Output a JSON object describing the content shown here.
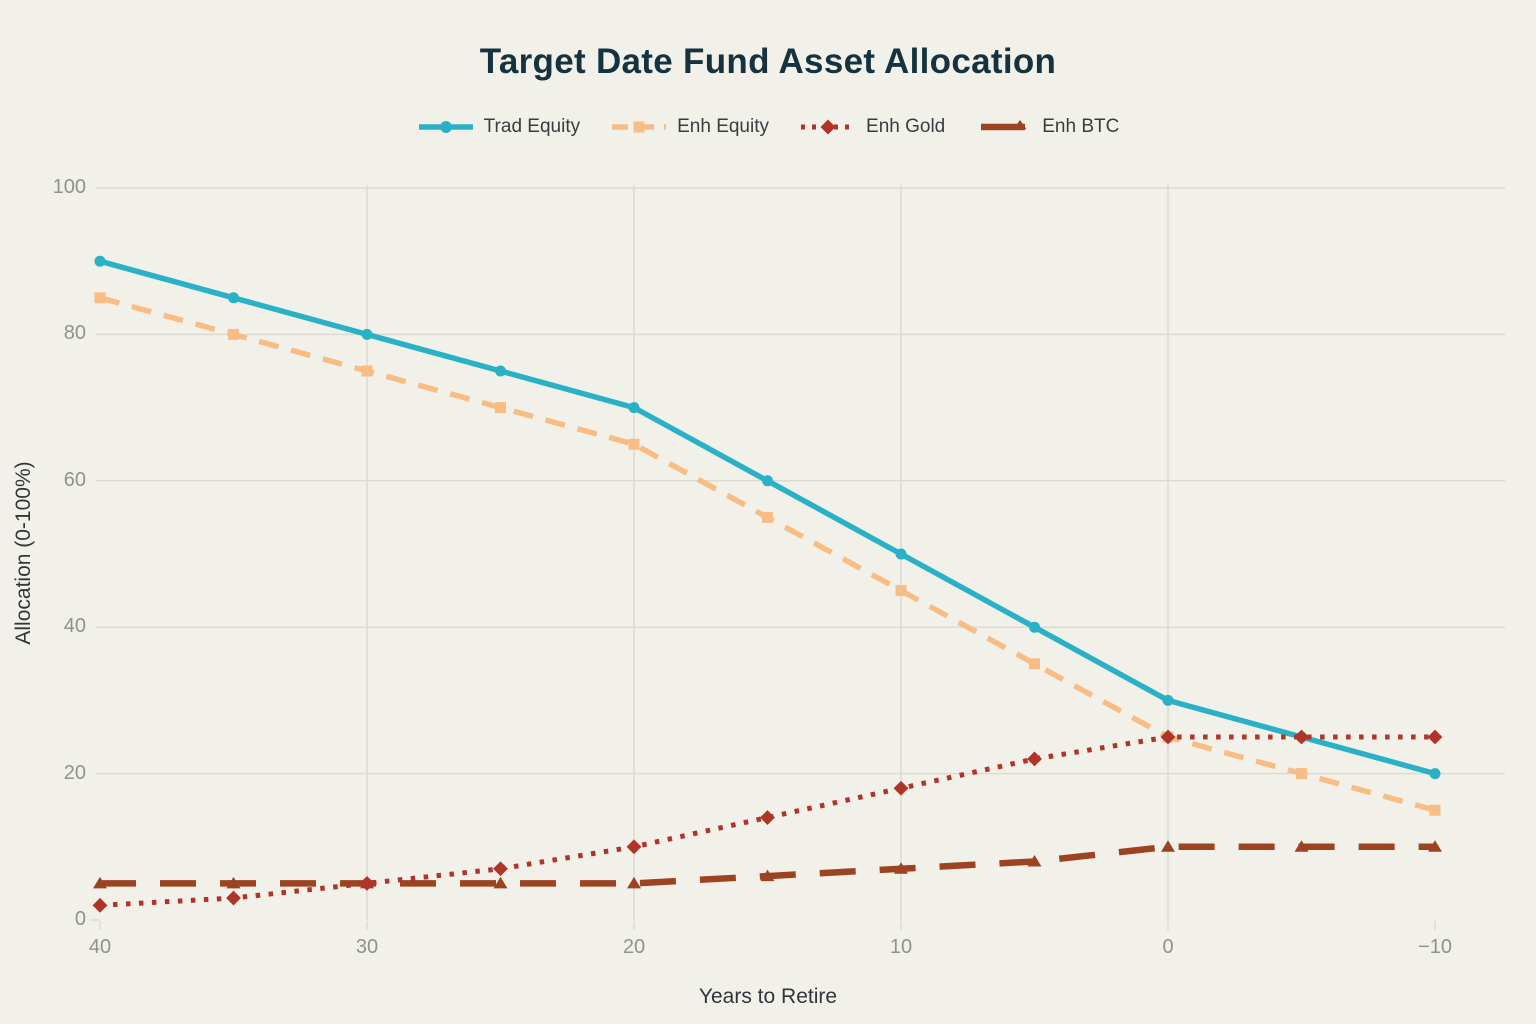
{
  "page": {
    "background": "#f1f1ea"
  },
  "title": "Target Date Fund Asset Allocation",
  "colors": {
    "title_text": "#14333f",
    "legend_text": "#3a3d3f",
    "tick_text": "#92928c",
    "axis_label_text": "#333639",
    "gridline": "#dcdbd2",
    "trad_equity": "#2ab1c5",
    "enh_equity": "#f8bd85",
    "enh_gold": "#b03428",
    "enh_btc": "#9c4322"
  },
  "chart_data": {
    "type": "line",
    "title": "Target Date Fund Asset Allocation",
    "xlabel": "Years to Retire",
    "ylabel": "Allocation (0-100%)",
    "x": [
      40,
      35,
      30,
      25,
      20,
      15,
      10,
      5,
      0,
      -5,
      -10
    ],
    "x_tick_values": [
      40,
      30,
      20,
      10,
      0,
      -10
    ],
    "x_tick_labels": [
      "40",
      "30",
      "20",
      "10",
      "0",
      "−10"
    ],
    "y_tick_values": [
      0,
      20,
      40,
      60,
      80,
      100
    ],
    "y_tick_labels": [
      "0",
      "20",
      "40",
      "60",
      "80",
      "100"
    ],
    "ylim": [
      0,
      100
    ],
    "x_axis_reversed": true,
    "grid": true,
    "legend_position": "top",
    "series": [
      {
        "name": "Trad Equity",
        "color": "#2ab1c5",
        "line_style": "solid",
        "marker": "circle",
        "values": [
          90,
          85,
          80,
          75,
          70,
          60,
          50,
          40,
          30,
          25,
          20
        ]
      },
      {
        "name": "Enh Equity",
        "color": "#f8bd85",
        "line_style": "dashed",
        "marker": "square",
        "values": [
          85,
          80,
          75,
          70,
          65,
          55,
          45,
          35,
          25,
          20,
          15
        ]
      },
      {
        "name": "Enh Gold",
        "color": "#b03428",
        "line_style": "dotted",
        "marker": "diamond",
        "values": [
          2,
          3,
          5,
          7,
          10,
          14,
          18,
          22,
          25,
          25,
          25
        ]
      },
      {
        "name": "Enh BTC",
        "color": "#9c4322",
        "line_style": "long-dash",
        "marker": "triangle",
        "values": [
          5,
          5,
          5,
          5,
          5,
          6,
          7,
          8,
          10,
          10,
          10
        ]
      }
    ]
  }
}
